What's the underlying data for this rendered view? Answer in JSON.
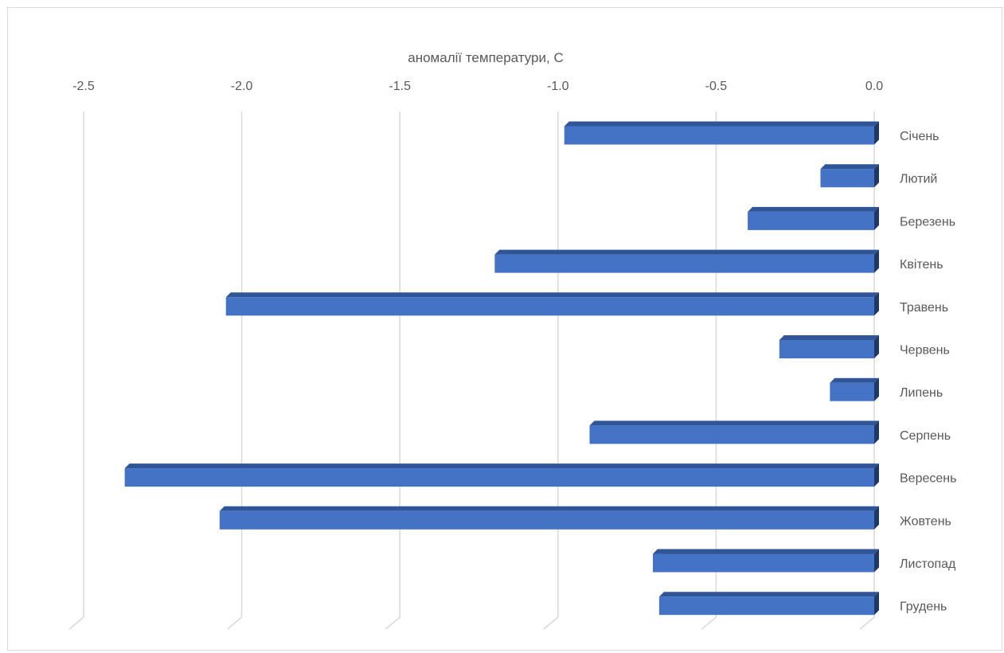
{
  "chart_data": {
    "type": "bar",
    "orientation": "horizontal",
    "style": "3d",
    "xlabel": "аномалії температури, С",
    "xlim": [
      -2.5,
      0.0
    ],
    "x_ticks": [
      "-2.5",
      "-2.0",
      "-1.5",
      "-1.0",
      "-0.5",
      "0.0"
    ],
    "x_tick_values": [
      -2.5,
      -2.0,
      -1.5,
      -1.0,
      -0.5,
      0.0
    ],
    "x_axis_position": "top",
    "y_axis_position": "right",
    "grid": true,
    "categories": [
      "Січень",
      "Лютий",
      "Березень",
      "Квітень",
      "Травень",
      "Червень",
      "Липень",
      "Серпень",
      "Вересень",
      "Жовтень",
      "Листопад",
      "Грудень"
    ],
    "values": [
      -0.98,
      -0.17,
      -0.4,
      -1.2,
      -2.05,
      -0.3,
      -0.14,
      -0.9,
      -2.37,
      -2.07,
      -0.7,
      -0.68
    ],
    "colors": {
      "bar_front": "#4472c4",
      "bar_top": "#2f5597",
      "bar_side": "#203864",
      "grid": "#d9d9d9",
      "text": "#595959"
    }
  }
}
